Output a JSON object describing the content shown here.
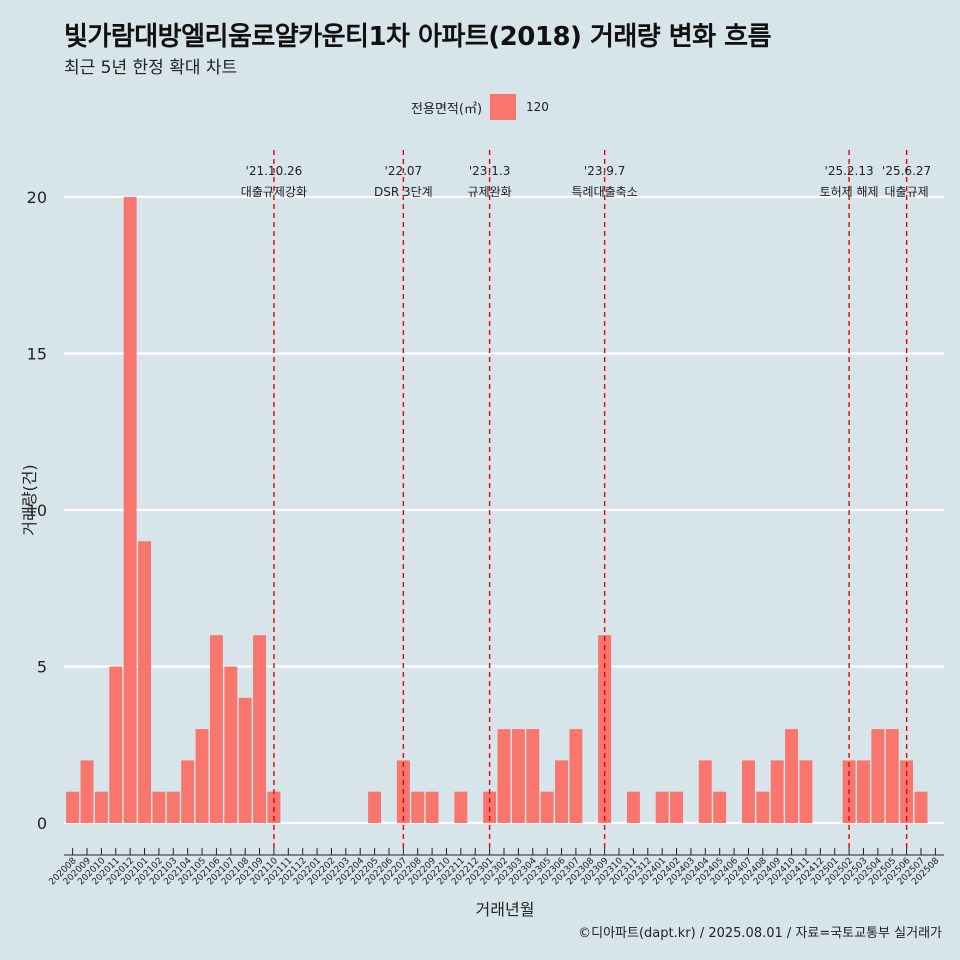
{
  "title": "빛가람대방엘리움로얄카운티1차 아파트(2018) 거래량 변화 흐름",
  "subtitle": "최근 5년 한정 확대 차트",
  "legend": {
    "title": "전용면적(㎡)",
    "entries": [
      {
        "label": "120",
        "color": "#f8766d"
      }
    ]
  },
  "caption": "©디아파트(dapt.kr) / 2025.08.01 / 자료=국토교통부 실거래가",
  "chart_data": {
    "type": "bar",
    "xlabel": "거래년월",
    "ylabel": "거래량(건)",
    "ylim": [
      0,
      21.5
    ],
    "yticks": [
      0,
      5,
      10,
      15,
      20
    ],
    "grid": "horizontal",
    "legend_position": "top",
    "categories": [
      "202008",
      "202009",
      "202010",
      "202011",
      "202012",
      "202101",
      "202102",
      "202103",
      "202104",
      "202105",
      "202106",
      "202107",
      "202108",
      "202109",
      "202110",
      "202111",
      "202112",
      "202201",
      "202202",
      "202203",
      "202204",
      "202205",
      "202206",
      "202207",
      "202208",
      "202209",
      "202210",
      "202211",
      "202212",
      "202301",
      "202302",
      "202303",
      "202304",
      "202305",
      "202306",
      "202307",
      "202308",
      "202309",
      "202310",
      "202311",
      "202312",
      "202401",
      "202402",
      "202403",
      "202404",
      "202405",
      "202406",
      "202407",
      "202408",
      "202409",
      "202410",
      "202411",
      "202412",
      "202501",
      "202502",
      "202503",
      "202504",
      "202505",
      "202506",
      "202507",
      "202508"
    ],
    "series": [
      {
        "name": "120",
        "color": "#f8766d",
        "values": [
          1,
          2,
          1,
          5,
          20,
          9,
          1,
          1,
          2,
          3,
          6,
          5,
          4,
          6,
          1,
          0,
          0,
          0,
          0,
          0,
          0,
          1,
          0,
          2,
          1,
          1,
          0,
          1,
          0,
          1,
          3,
          3,
          3,
          1,
          2,
          3,
          0,
          6,
          0,
          1,
          0,
          1,
          1,
          0,
          2,
          1,
          0,
          2,
          1,
          2,
          3,
          2,
          0,
          0,
          2,
          2,
          3,
          3,
          2,
          1,
          0
        ]
      }
    ],
    "annotations": [
      {
        "category": "202110",
        "date": "'21.10.26",
        "label": "대출규제강화",
        "color": "#e8000b"
      },
      {
        "category": "202207",
        "date": "'22.07",
        "label": "DSR 3단계",
        "color": "#e8000b"
      },
      {
        "category": "202301",
        "date": "'23.1.3",
        "label": "규제완화",
        "color": "#e8000b"
      },
      {
        "category": "202309",
        "date": "'23.9.7",
        "label": "특례대출축소",
        "color": "#e8000b"
      },
      {
        "category": "202502",
        "date": "'25.2.13",
        "label": "토허제 해제",
        "color": "#e8000b"
      },
      {
        "category": "202506",
        "date": "'25.6.27",
        "label": "대출규제",
        "color": "#e8000b"
      }
    ]
  }
}
